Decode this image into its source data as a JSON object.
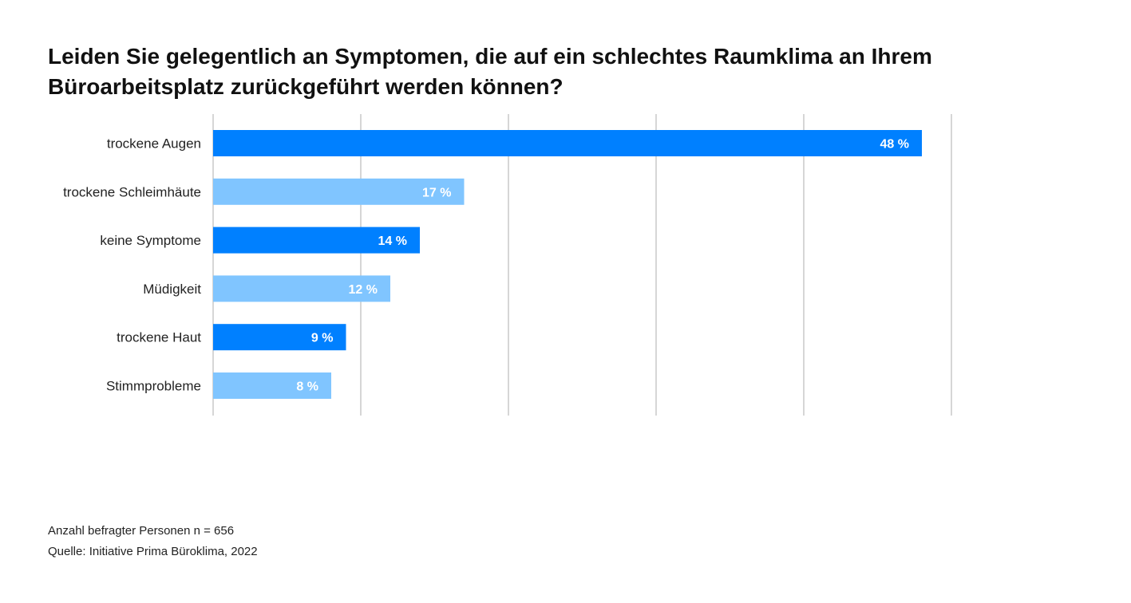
{
  "title": "Leiden Sie gelegentlich an Symptomen, die auf ein schlechtes Raumklima an Ihrem Büroarbeitsplatz zurückgeführt werden können?",
  "footnotes": {
    "sample": "Anzahl befragter Personen n = 656",
    "source": "Quelle: Initiative Prima Büroklima, 2022"
  },
  "colors": {
    "dark_blue": "#0080FF",
    "light_blue": "#80C5FF",
    "grid": "#D6D6D6"
  },
  "chart_data": {
    "type": "bar",
    "orientation": "horizontal",
    "categories": [
      "trockene Augen",
      "trockene Schleimhäute",
      "keine Symptome",
      "Müdigkeit",
      "trockene Haut",
      "Stimmprobleme"
    ],
    "values": [
      48,
      17,
      14,
      12,
      9,
      8
    ],
    "value_labels": [
      "48 %",
      "17 %",
      "14 %",
      "12 %",
      "9 %",
      "8 %"
    ],
    "bar_colors": [
      "#0080FF",
      "#80C5FF",
      "#0080FF",
      "#80C5FF",
      "#0080FF",
      "#80C5FF"
    ],
    "unit": "%",
    "xlim": [
      0,
      50
    ],
    "grid_step": 10,
    "grid": true,
    "legend": "none"
  }
}
